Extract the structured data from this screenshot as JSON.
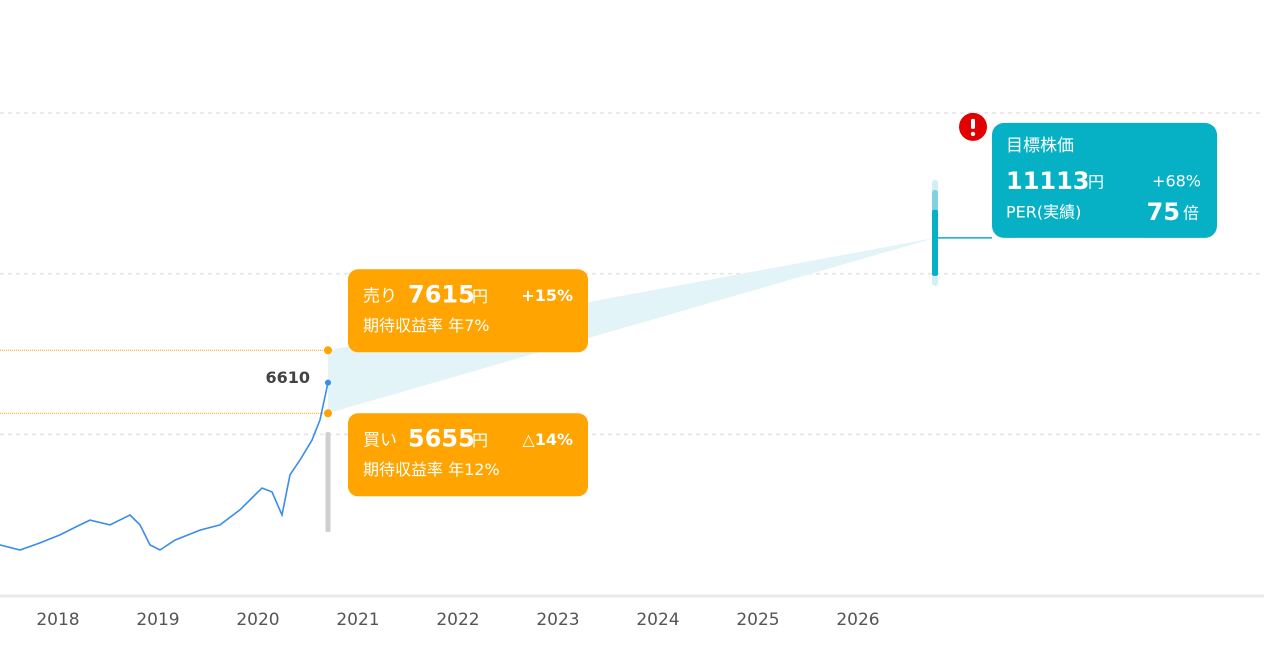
{
  "chart_data": {
    "type": "line",
    "xlim": [
      2017.42,
      2030.06
    ],
    "xticks": [
      2018,
      2019,
      2020,
      2021,
      2022,
      2023,
      2024,
      2025,
      2026
    ],
    "ylim": [
      0,
      15000
    ],
    "gridlines": [
      5000,
      10000,
      15000
    ],
    "series": [
      {
        "color": "#3a8ee6",
        "x": [
          2017.42,
          2017.62,
          2017.82,
          2018.02,
          2018.22,
          2018.32,
          2018.52,
          2018.72,
          2018.82,
          2018.92,
          2019.02,
          2019.17,
          2019.42,
          2019.62,
          2019.82,
          2020.04,
          2020.14,
          2020.24,
          2020.32,
          2020.42,
          2020.54,
          2020.62,
          2020.7
        ],
        "values": [
          1560,
          1400,
          1620,
          1870,
          2180,
          2330,
          2180,
          2490,
          2180,
          1560,
          1400,
          1710,
          2020,
          2180,
          2650,
          3330,
          3210,
          2490,
          3740,
          4200,
          4820,
          5450,
          6610
        ]
      }
    ],
    "sell": {
      "label": "売り",
      "price": 7615,
      "unit": "円",
      "change": "+15%",
      "yield": "期待収益率 年7%",
      "color": "#ffa400"
    },
    "buy": {
      "label": "買い",
      "price": 5655,
      "unit": "円",
      "change": "△14%",
      "yield": "期待収益率 年12%",
      "color": "#ffa400"
    },
    "target": {
      "title": "目標株価",
      "price": 11113,
      "unit": "円",
      "change": "+68%",
      "per_label": "PER(実績)",
      "per": 75,
      "per_unit": "倍",
      "x": 2026.77,
      "color": "#06b1c6"
    }
  }
}
